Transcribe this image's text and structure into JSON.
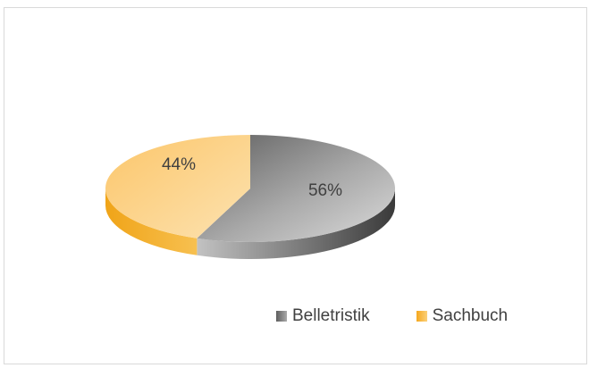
{
  "chart_data": {
    "type": "pie",
    "style": "3d",
    "title": "",
    "categories": [
      "Belletristik",
      "Sachbuch"
    ],
    "values": [
      56,
      44
    ],
    "data_labels": [
      "56%",
      "44%"
    ],
    "legend": {
      "placement": "bottom",
      "entries": [
        "Belletristik",
        "Sachbuch"
      ]
    },
    "colors": {
      "Belletristik": "#8c8c8c",
      "Sachbuch": "#f5b02e"
    }
  }
}
